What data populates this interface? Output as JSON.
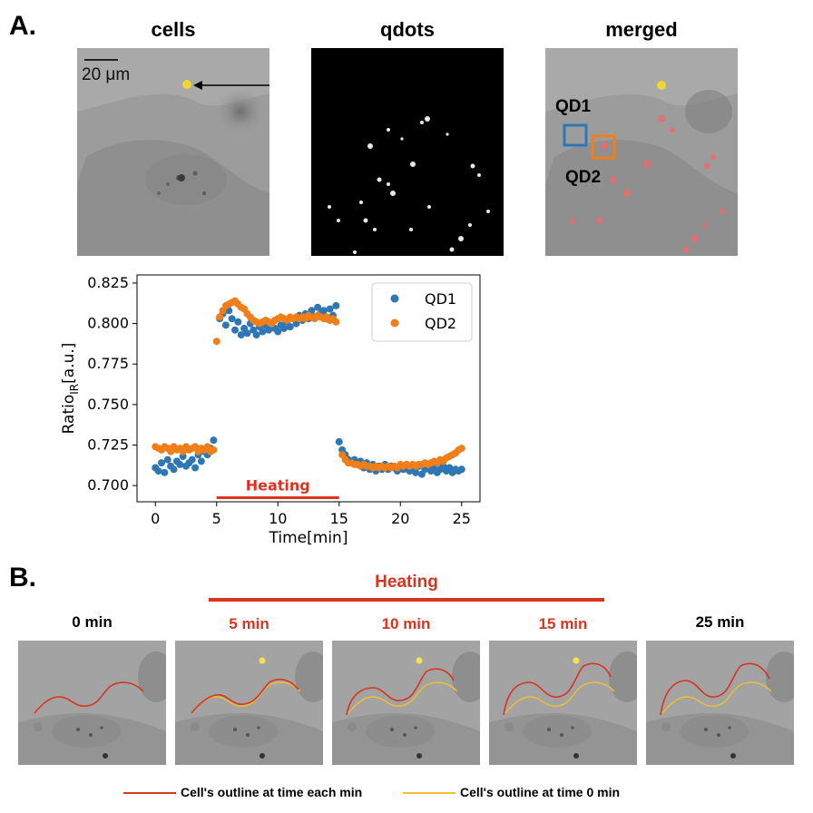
{
  "panel_a": {
    "letter": "A.",
    "titles": [
      "cells",
      "qdots",
      "merged"
    ],
    "scalebar_label": "20 μm",
    "roi_labels": [
      "QD1",
      "QD2"
    ],
    "colors": {
      "qd1": "#2f77b4",
      "qd2": "#f07f1a",
      "marker": "#f1d634",
      "heating": "#e0301e"
    }
  },
  "panel_b": {
    "letter": "B.",
    "heating_label": "Heating",
    "timepoints": [
      "0 min",
      "5 min",
      "10 min",
      "15 min",
      "25 min"
    ],
    "legend": [
      "Cell's outline at time each min",
      "Cell's outline at time 0 min"
    ],
    "colors": {
      "outline_each": "#d9341f",
      "outline_zero": "#f0c030"
    }
  },
  "chart_data": {
    "type": "scatter",
    "xlabel": "Time[min]",
    "ylabel": "Ratio",
    "ylabel_sub": "IR",
    "ylabel_suffix": "[a.u.]",
    "xlim": [
      -1.5,
      26.5
    ],
    "ylim": [
      0.69,
      0.83
    ],
    "xticks": [
      0,
      5,
      10,
      15,
      20,
      25
    ],
    "yticks": [
      0.7,
      0.725,
      0.75,
      0.775,
      0.8,
      0.825
    ],
    "ytick_labels": [
      "0.700",
      "0.725",
      "0.750",
      "0.775",
      "0.800",
      "0.825"
    ],
    "legend_position": "top-right",
    "annotation": {
      "text": "Heating",
      "x_start": 5,
      "x_end": 15,
      "y": 0.6925
    },
    "series": [
      {
        "name": "QD1",
        "color": "#2f77b4",
        "points": [
          [
            0,
            0.711
          ],
          [
            0.25,
            0.709
          ],
          [
            0.5,
            0.714
          ],
          [
            0.75,
            0.708
          ],
          [
            1,
            0.716
          ],
          [
            1.25,
            0.712
          ],
          [
            1.5,
            0.71
          ],
          [
            1.75,
            0.715
          ],
          [
            2,
            0.713
          ],
          [
            2.25,
            0.718
          ],
          [
            2.5,
            0.712
          ],
          [
            2.75,
            0.714
          ],
          [
            3,
            0.716
          ],
          [
            3.25,
            0.711
          ],
          [
            3.5,
            0.719
          ],
          [
            3.75,
            0.715
          ],
          [
            4,
            0.721
          ],
          [
            4.25,
            0.719
          ],
          [
            4.5,
            0.723
          ],
          [
            4.75,
            0.728
          ],
          [
            5.25,
            0.803
          ],
          [
            5.5,
            0.806
          ],
          [
            5.75,
            0.799
          ],
          [
            6,
            0.808
          ],
          [
            6.25,
            0.803
          ],
          [
            6.5,
            0.796
          ],
          [
            6.75,
            0.801
          ],
          [
            7,
            0.793
          ],
          [
            7.25,
            0.797
          ],
          [
            7.5,
            0.794
          ],
          [
            7.75,
            0.8
          ],
          [
            8,
            0.796
          ],
          [
            8.25,
            0.793
          ],
          [
            8.5,
            0.798
          ],
          [
            8.75,
            0.795
          ],
          [
            9,
            0.799
          ],
          [
            9.25,
            0.796
          ],
          [
            9.5,
            0.8
          ],
          [
            9.75,
            0.797
          ],
          [
            10,
            0.795
          ],
          [
            10.25,
            0.799
          ],
          [
            10.5,
            0.797
          ],
          [
            10.75,
            0.801
          ],
          [
            11,
            0.798
          ],
          [
            11.25,
            0.803
          ],
          [
            11.5,
            0.8
          ],
          [
            11.75,
            0.805
          ],
          [
            12,
            0.802
          ],
          [
            12.25,
            0.806
          ],
          [
            12.5,
            0.803
          ],
          [
            12.75,
            0.808
          ],
          [
            13,
            0.804
          ],
          [
            13.25,
            0.81
          ],
          [
            13.5,
            0.806
          ],
          [
            13.75,
            0.808
          ],
          [
            14,
            0.803
          ],
          [
            14.25,
            0.809
          ],
          [
            14.5,
            0.805
          ],
          [
            14.75,
            0.811
          ],
          [
            15,
            0.727
          ],
          [
            15.25,
            0.722
          ],
          [
            15.5,
            0.719
          ],
          [
            15.75,
            0.716
          ],
          [
            16,
            0.714
          ],
          [
            16.25,
            0.716
          ],
          [
            16.5,
            0.713
          ],
          [
            16.75,
            0.715
          ],
          [
            17,
            0.711
          ],
          [
            17.25,
            0.714
          ],
          [
            17.5,
            0.71
          ],
          [
            17.75,
            0.713
          ],
          [
            18,
            0.709
          ],
          [
            18.25,
            0.712
          ],
          [
            18.5,
            0.71
          ],
          [
            18.75,
            0.713
          ],
          [
            19,
            0.71
          ],
          [
            19.25,
            0.712
          ],
          [
            19.5,
            0.711
          ],
          [
            19.75,
            0.709
          ],
          [
            20,
            0.712
          ],
          [
            20.25,
            0.71
          ],
          [
            20.5,
            0.713
          ],
          [
            20.75,
            0.709
          ],
          [
            21,
            0.711
          ],
          [
            21.25,
            0.708
          ],
          [
            21.5,
            0.712
          ],
          [
            21.75,
            0.707
          ],
          [
            22,
            0.71
          ],
          [
            22.25,
            0.712
          ],
          [
            22.5,
            0.709
          ],
          [
            22.75,
            0.711
          ],
          [
            23,
            0.708
          ],
          [
            23.25,
            0.71
          ],
          [
            23.5,
            0.712
          ],
          [
            23.75,
            0.709
          ],
          [
            24,
            0.711
          ],
          [
            24.25,
            0.708
          ],
          [
            24.5,
            0.71
          ],
          [
            24.75,
            0.709
          ],
          [
            25,
            0.71
          ]
        ]
      },
      {
        "name": "QD2",
        "color": "#f07f1a",
        "points": [
          [
            0,
            0.724
          ],
          [
            0.25,
            0.723
          ],
          [
            0.5,
            0.722
          ],
          [
            0.75,
            0.724
          ],
          [
            1,
            0.723
          ],
          [
            1.25,
            0.721
          ],
          [
            1.5,
            0.724
          ],
          [
            1.75,
            0.722
          ],
          [
            2,
            0.723
          ],
          [
            2.25,
            0.721
          ],
          [
            2.5,
            0.724
          ],
          [
            2.75,
            0.722
          ],
          [
            3,
            0.723
          ],
          [
            3.25,
            0.724
          ],
          [
            3.5,
            0.721
          ],
          [
            3.75,
            0.723
          ],
          [
            4,
            0.722
          ],
          [
            4.25,
            0.724
          ],
          [
            4.5,
            0.721
          ],
          [
            4.75,
            0.722
          ],
          [
            5,
            0.789
          ],
          [
            5.25,
            0.804
          ],
          [
            5.5,
            0.808
          ],
          [
            5.75,
            0.811
          ],
          [
            6,
            0.812
          ],
          [
            6.25,
            0.813
          ],
          [
            6.5,
            0.814
          ],
          [
            6.75,
            0.812
          ],
          [
            7,
            0.81
          ],
          [
            7.25,
            0.809
          ],
          [
            7.5,
            0.806
          ],
          [
            7.75,
            0.804
          ],
          [
            8,
            0.802
          ],
          [
            8.25,
            0.801
          ],
          [
            8.5,
            0.8
          ],
          [
            8.75,
            0.801
          ],
          [
            9,
            0.802
          ],
          [
            9.25,
            0.801
          ],
          [
            9.5,
            0.8
          ],
          [
            9.75,
            0.802
          ],
          [
            10,
            0.803
          ],
          [
            10.25,
            0.804
          ],
          [
            10.5,
            0.803
          ],
          [
            10.75,
            0.802
          ],
          [
            11,
            0.804
          ],
          [
            11.25,
            0.803
          ],
          [
            11.5,
            0.804
          ],
          [
            11.75,
            0.803
          ],
          [
            12,
            0.804
          ],
          [
            12.25,
            0.803
          ],
          [
            12.5,
            0.805
          ],
          [
            12.75,
            0.804
          ],
          [
            13,
            0.803
          ],
          [
            13.25,
            0.805
          ],
          [
            13.5,
            0.804
          ],
          [
            13.75,
            0.803
          ],
          [
            14,
            0.804
          ],
          [
            14.25,
            0.802
          ],
          [
            14.5,
            0.803
          ],
          [
            14.75,
            0.801
          ],
          [
            15.25,
            0.719
          ],
          [
            15.5,
            0.716
          ],
          [
            15.75,
            0.714
          ],
          [
            16,
            0.714
          ],
          [
            16.25,
            0.713
          ],
          [
            16.5,
            0.713
          ],
          [
            16.75,
            0.712
          ],
          [
            17,
            0.713
          ],
          [
            17.25,
            0.712
          ],
          [
            17.5,
            0.712
          ],
          [
            17.75,
            0.711
          ],
          [
            18,
            0.712
          ],
          [
            18.25,
            0.711
          ],
          [
            18.5,
            0.712
          ],
          [
            18.75,
            0.711
          ],
          [
            19,
            0.712
          ],
          [
            19.25,
            0.711
          ],
          [
            19.5,
            0.712
          ],
          [
            19.75,
            0.711
          ],
          [
            20,
            0.713
          ],
          [
            20.25,
            0.712
          ],
          [
            20.5,
            0.713
          ],
          [
            20.75,
            0.712
          ],
          [
            21,
            0.713
          ],
          [
            21.25,
            0.712
          ],
          [
            21.5,
            0.713
          ],
          [
            21.75,
            0.713
          ],
          [
            22,
            0.714
          ],
          [
            22.25,
            0.713
          ],
          [
            22.5,
            0.714
          ],
          [
            22.75,
            0.715
          ],
          [
            23,
            0.714
          ],
          [
            23.25,
            0.716
          ],
          [
            23.5,
            0.715
          ],
          [
            23.75,
            0.717
          ],
          [
            24,
            0.718
          ],
          [
            24.25,
            0.719
          ],
          [
            24.5,
            0.72
          ],
          [
            24.75,
            0.722
          ],
          [
            25,
            0.723
          ]
        ]
      }
    ]
  }
}
